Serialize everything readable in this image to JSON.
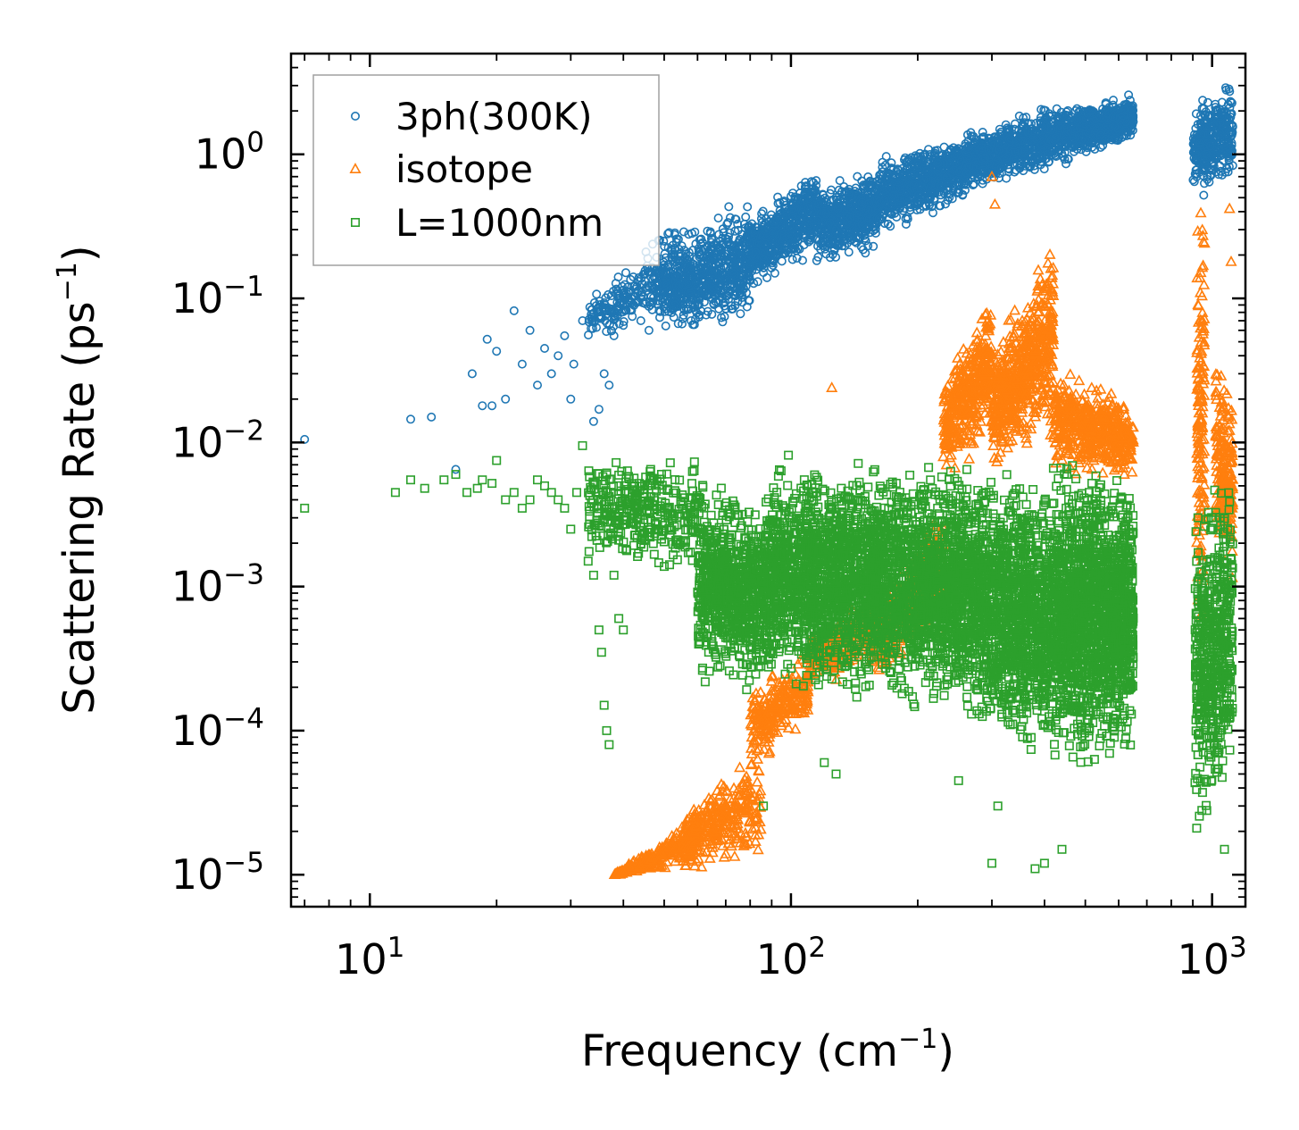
{
  "chart_data": {
    "type": "scatter",
    "xscale": "log",
    "yscale": "log",
    "xlabel": {
      "base": "Frequency (cm",
      "sup": "−1",
      "close": ")"
    },
    "ylabel": {
      "base": "Scattering Rate (ps",
      "sup": "−1",
      "close": ")"
    },
    "xlim": [
      6.5,
      1200
    ],
    "ylim": [
      6e-06,
      5
    ],
    "x_ticks": [
      {
        "value": 10,
        "base": "10",
        "exp": "1"
      },
      {
        "value": 100,
        "base": "10",
        "exp": "2"
      },
      {
        "value": 1000,
        "base": "10",
        "exp": "3"
      }
    ],
    "y_ticks": [
      {
        "value": 1,
        "base": "10",
        "exp": "0"
      },
      {
        "value": 0.1,
        "base": "10",
        "exp": "−1"
      },
      {
        "value": 0.01,
        "base": "10",
        "exp": "−2"
      },
      {
        "value": 0.001,
        "base": "10",
        "exp": "−3"
      },
      {
        "value": 0.0001,
        "base": "10",
        "exp": "−4"
      },
      {
        "value": 1e-05,
        "base": "10",
        "exp": "−5"
      }
    ],
    "legend_position": "top-left",
    "series": [
      {
        "name": "3ph(300K)",
        "marker": "circle",
        "color": "#1f77b4",
        "points": [
          [
            7.0,
            0.0105
          ],
          [
            12.5,
            0.0145
          ],
          [
            14,
            0.015
          ],
          [
            16,
            0.0065
          ],
          [
            17.5,
            0.03
          ],
          [
            18.5,
            0.018
          ],
          [
            19,
            0.052
          ],
          [
            19.5,
            0.018
          ],
          [
            20,
            0.043
          ],
          [
            21,
            0.02
          ],
          [
            22,
            0.082
          ],
          [
            23,
            0.035
          ],
          [
            24,
            0.06
          ],
          [
            25,
            0.025
          ],
          [
            26,
            0.045
          ],
          [
            27,
            0.03
          ],
          [
            28,
            0.04
          ],
          [
            29,
            0.055
          ],
          [
            30,
            0.02
          ],
          [
            30.5,
            0.035
          ],
          [
            32,
            0.07
          ],
          [
            34,
            0.014
          ],
          [
            35,
            0.017
          ],
          [
            36,
            0.03
          ],
          [
            37,
            0.025
          ],
          [
            38,
            0.055
          ],
          [
            40,
            0.065
          ],
          [
            42,
            0.075
          ],
          [
            44,
            0.07
          ],
          [
            46,
            0.06
          ]
        ],
        "bands": [
          {
            "x": [
              33,
              48
            ],
            "low": [
              0.045,
              0.07
            ],
            "high": [
              0.1,
              0.3
            ],
            "n": 180
          },
          {
            "x": [
              48,
              80
            ],
            "low": [
              0.05,
              0.06
            ],
            "high": [
              0.3,
              0.55
            ],
            "n": 700
          },
          {
            "x": [
              80,
              115
            ],
            "low": [
              0.1,
              0.2
            ],
            "high": [
              0.4,
              0.9
            ],
            "n": 550
          },
          {
            "x": [
              115,
              160
            ],
            "low": [
              0.16,
              0.2
            ],
            "high": [
              0.6,
              0.9
            ],
            "n": 550
          },
          {
            "x": [
              160,
              260
            ],
            "low": [
              0.25,
              0.45
            ],
            "high": [
              1.0,
              1.5
            ],
            "n": 700
          },
          {
            "x": [
              260,
              460
            ],
            "low": [
              0.5,
              0.8
            ],
            "high": [
              1.6,
              2.5
            ],
            "n": 800
          },
          {
            "x": [
              460,
              650
            ],
            "low": [
              0.9,
              1.2
            ],
            "high": [
              2.2,
              2.8
            ],
            "n": 600
          },
          {
            "x": [
              900,
              1120
            ],
            "low": [
              0.45,
              0.6
            ],
            "high": [
              2.8,
              3.4
            ],
            "n": 350
          }
        ]
      },
      {
        "name": "isotope",
        "marker": "triangle",
        "color": "#ff7f0e",
        "points": [
          [
            125,
            0.024
          ],
          [
            300,
            0.7
          ],
          [
            305,
            0.45
          ],
          [
            460,
            0.018
          ],
          [
            470,
            0.02
          ],
          [
            1100,
            0.42
          ],
          [
            1110,
            0.18
          ]
        ],
        "bands": [
          {
            "x": [
              38,
              60
            ],
            "low": [
              1e-05,
              1e-05
            ],
            "high": [
              1e-05,
              3e-05
            ],
            "n": 220
          },
          {
            "x": [
              55,
              85
            ],
            "low": [
              1e-05,
              1e-05
            ],
            "high": [
              3e-05,
              9e-05
            ],
            "n": 320
          },
          {
            "x": [
              80,
              110
            ],
            "low": [
              5e-05,
              0.0001
            ],
            "high": [
              0.0002,
              0.0004
            ],
            "n": 250
          },
          {
            "x": [
              110,
              160
            ],
            "low": [
              0.0002,
              0.00025
            ],
            "high": [
              0.0005,
              0.001
            ],
            "n": 250
          },
          {
            "x": [
              160,
              230
            ],
            "low": [
              0.0002,
              0.0004
            ],
            "high": [
              0.001,
              0.005
            ],
            "n": 250
          },
          {
            "x": [
              230,
              300
            ],
            "low": [
              0.005,
              0.01
            ],
            "high": [
              0.03,
              0.15
            ],
            "n": 400
          },
          {
            "x": [
              300,
              420
            ],
            "low": [
              0.006,
              0.01
            ],
            "high": [
              0.05,
              0.3
            ],
            "n": 600
          },
          {
            "x": [
              420,
              650
            ],
            "low": [
              0.006,
              0.005
            ],
            "high": [
              0.04,
              0.02
            ],
            "n": 500
          },
          {
            "x": [
              920,
              960
            ],
            "low": [
              0.0005,
              0.0002
            ],
            "high": [
              0.5,
              0.8
            ],
            "n": 150
          },
          {
            "x": [
              1020,
              1120
            ],
            "low": [
              0.001,
              0.001
            ],
            "high": [
              0.08,
              0.02
            ],
            "n": 200
          }
        ]
      },
      {
        "name": "L=1000nm",
        "marker": "square",
        "color": "#2ca02c",
        "points": [
          [
            7.0,
            0.0035
          ],
          [
            11.5,
            0.0045
          ],
          [
            12.5,
            0.0055
          ],
          [
            13.5,
            0.0048
          ],
          [
            15,
            0.0055
          ],
          [
            16,
            0.006
          ],
          [
            17,
            0.0045
          ],
          [
            18,
            0.0048
          ],
          [
            18.5,
            0.0055
          ],
          [
            19.5,
            0.0052
          ],
          [
            20,
            0.0075
          ],
          [
            21,
            0.004
          ],
          [
            22,
            0.0045
          ],
          [
            23,
            0.0035
          ],
          [
            24,
            0.004
          ],
          [
            25,
            0.0055
          ],
          [
            26,
            0.005
          ],
          [
            27,
            0.0045
          ],
          [
            28,
            0.004
          ],
          [
            29,
            0.0035
          ],
          [
            30,
            0.0025
          ],
          [
            31,
            0.0045
          ],
          [
            32,
            0.0095
          ],
          [
            33,
            0.0015
          ],
          [
            34,
            0.0012
          ],
          [
            35,
            0.0005
          ],
          [
            35.5,
            0.00035
          ],
          [
            36,
            0.00015
          ],
          [
            36.5,
            0.0001
          ],
          [
            37,
            8e-05
          ],
          [
            38,
            0.0012
          ],
          [
            39,
            0.0006
          ],
          [
            40,
            0.0005
          ],
          [
            86,
            3e-05
          ],
          [
            120,
            6e-05
          ],
          [
            128,
            5e-05
          ],
          [
            250,
            4.5e-05
          ],
          [
            300,
            1.2e-05
          ],
          [
            310,
            3e-05
          ],
          [
            400,
            1.2e-05
          ],
          [
            440,
            1.5e-05
          ],
          [
            380,
            1.1e-05
          ],
          [
            1070,
            1.5e-05
          ]
        ],
        "bands": [
          {
            "x": [
              33,
              60
            ],
            "low": [
              0.0015,
              0.001
            ],
            "high": [
              0.01,
              0.008
            ],
            "n": 350
          },
          {
            "x": [
              60,
              90
            ],
            "low": [
              0.0002,
              0.00015
            ],
            "high": [
              0.006,
              0.005
            ],
            "n": 900
          },
          {
            "x": [
              90,
              200
            ],
            "low": [
              0.0002,
              0.0001
            ],
            "high": [
              0.009,
              0.01
            ],
            "n": 2000
          },
          {
            "x": [
              200,
              420
            ],
            "low": [
              0.00015,
              4e-05
            ],
            "high": [
              0.009,
              0.009
            ],
            "n": 2200
          },
          {
            "x": [
              420,
              650
            ],
            "low": [
              4e-05,
              5e-05
            ],
            "high": [
              0.009,
              0.009
            ],
            "n": 1700
          },
          {
            "x": [
              910,
              1120
            ],
            "low": [
              1e-05,
              4e-05
            ],
            "high": [
              0.006,
              0.008
            ],
            "n": 550
          }
        ]
      }
    ]
  }
}
